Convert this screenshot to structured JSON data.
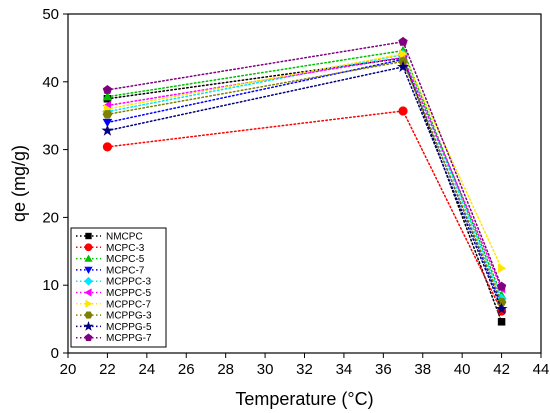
{
  "chart_data": {
    "type": "line",
    "xlabel": "Temperature (°C)",
    "ylabel": "qe (mg/g)",
    "xlim": [
      20,
      44
    ],
    "ylim": [
      0,
      50
    ],
    "xticks": [
      20,
      22,
      24,
      26,
      28,
      30,
      32,
      34,
      36,
      38,
      40,
      42,
      44
    ],
    "yticks": [
      0,
      10,
      20,
      30,
      40,
      50
    ],
    "x": [
      22,
      37,
      42
    ],
    "legend_position": "bottom-left",
    "line_style": "dotted",
    "series": [
      {
        "name": "NMCPC",
        "values": [
          37.5,
          43.5,
          4.6
        ],
        "color": "#000000",
        "marker": "square"
      },
      {
        "name": "MCPC-3",
        "values": [
          30.4,
          35.7,
          6.2
        ],
        "color": "#ff0000",
        "marker": "circle"
      },
      {
        "name": "MCPC-5",
        "values": [
          37.8,
          44.6,
          8.5
        ],
        "color": "#00c000",
        "marker": "triangle-up"
      },
      {
        "name": "MCPC-7",
        "values": [
          34.0,
          43.3,
          7.0
        ],
        "color": "#0000ff",
        "marker": "triangle-down"
      },
      {
        "name": "MCPPC-3",
        "values": [
          35.6,
          44.0,
          8.0
        ],
        "color": "#00e5ff",
        "marker": "diamond"
      },
      {
        "name": "MCPPC-5",
        "values": [
          36.5,
          43.6,
          9.5
        ],
        "color": "#ff00ff",
        "marker": "triangle-left"
      },
      {
        "name": "MCPPC-7",
        "values": [
          36.0,
          44.1,
          12.5
        ],
        "color": "#ffe600",
        "marker": "triangle-right"
      },
      {
        "name": "MCPPG-3",
        "values": [
          35.2,
          43.0,
          7.5
        ],
        "color": "#808000",
        "marker": "hexagon"
      },
      {
        "name": "MCPPG-5",
        "values": [
          32.8,
          42.2,
          6.5
        ],
        "color": "#000080",
        "marker": "star"
      },
      {
        "name": "MCPPG-7",
        "values": [
          38.8,
          45.9,
          9.8
        ],
        "color": "#800080",
        "marker": "pentagon"
      }
    ]
  }
}
